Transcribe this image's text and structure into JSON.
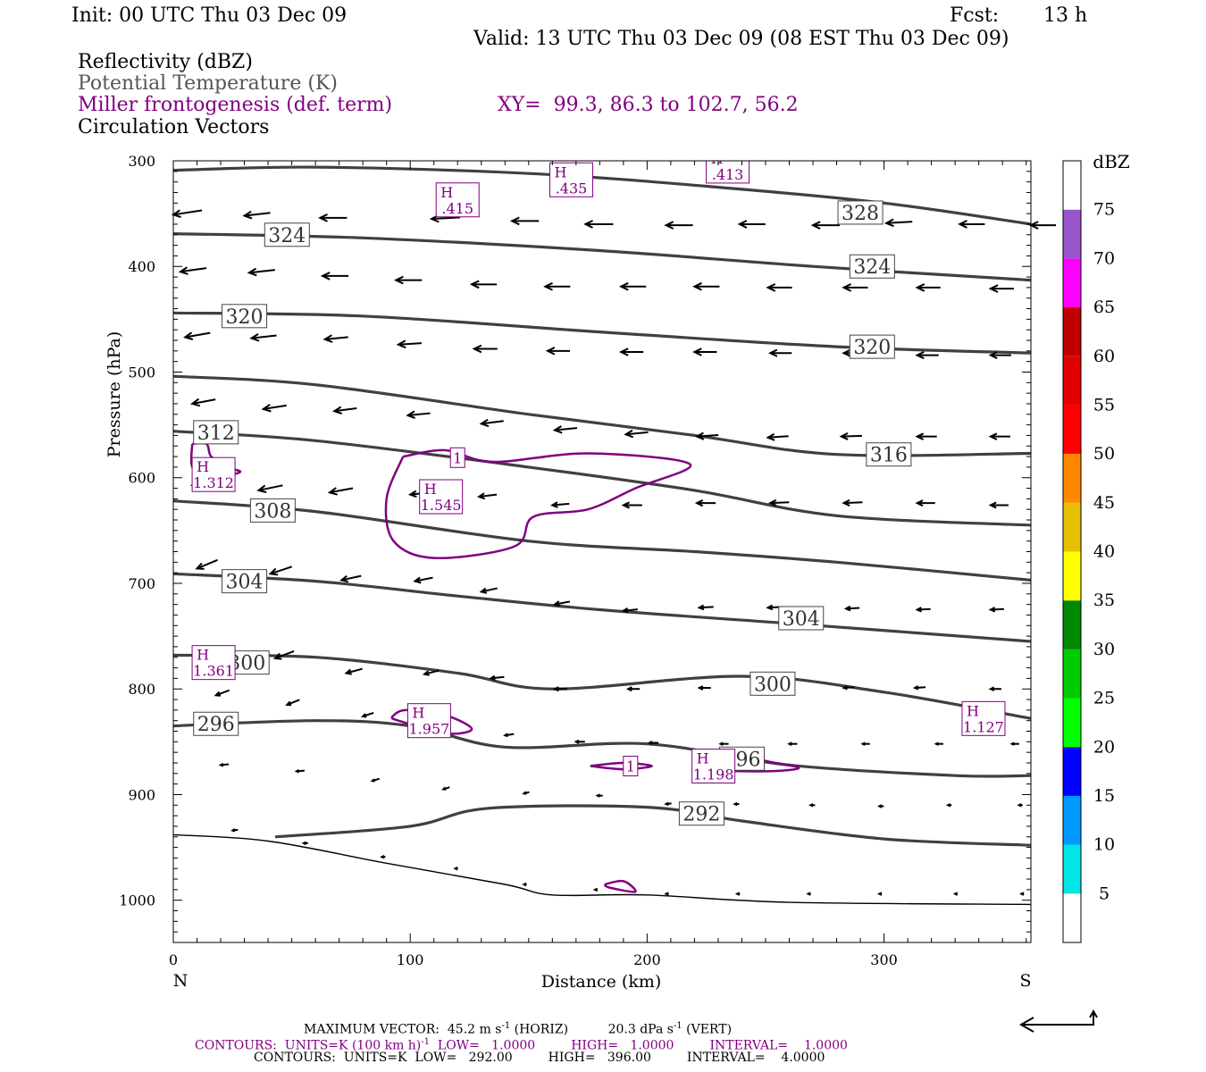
{
  "header": {
    "init": "Init: 00 UTC Thu 03 Dec 09",
    "fcst_label": "Fcst:",
    "fcst_value": "13 h",
    "valid": "Valid: 13 UTC Thu 03 Dec 09 (08 EST Thu 03 Dec 09)",
    "fields": [
      "Reflectivity (dBZ)",
      "Potential Temperature (K)",
      "Miller frontogenesis (def. term)",
      "Circulation Vectors"
    ],
    "xy": "XY=  99.3, 86.3 to 102.7, 56.2"
  },
  "colors": {
    "theta": "#404040",
    "frontogenesis": "#800080",
    "vectors": "#000000"
  },
  "chart_data": {
    "type": "cross-section",
    "xlabel": "Distance (km)",
    "ylabel": "Pressure (hPa)",
    "xlim": [
      0,
      362
    ],
    "ylim": [
      1040,
      300
    ],
    "x_ticks": [
      0,
      100,
      200,
      300
    ],
    "y_ticks": [
      300,
      400,
      500,
      600,
      700,
      800,
      900,
      1000
    ],
    "endpoint_left": "N",
    "endpoint_right": "S",
    "colorbar": {
      "unit": "dBZ",
      "labels": [
        "5",
        "10",
        "15",
        "20",
        "25",
        "30",
        "35",
        "40",
        "45",
        "50",
        "55",
        "60",
        "65",
        "70",
        "75"
      ],
      "colors": [
        "#ffffff",
        "#00e5e5",
        "#0099ff",
        "#0000ff",
        "#00ff00",
        "#00cc00",
        "#008800",
        "#ffff00",
        "#e5c000",
        "#ff8800",
        "#ff0000",
        "#e00000",
        "#c00000",
        "#ff00ff",
        "#9955cc",
        "#ffffff"
      ]
    },
    "theta_contours": [
      {
        "level": 328,
        "points": [
          [
            0,
            309
          ],
          [
            60,
            306
          ],
          [
            150,
            312
          ],
          [
            230,
            325
          ],
          [
            300,
            340
          ],
          [
            362,
            360
          ]
        ]
      },
      {
        "level": 324,
        "points": [
          [
            0,
            369
          ],
          [
            80,
            373
          ],
          [
            180,
            385
          ],
          [
            270,
            400
          ],
          [
            362,
            413
          ]
        ]
      },
      {
        "level": 320,
        "points": [
          [
            0,
            444
          ],
          [
            80,
            447
          ],
          [
            180,
            462
          ],
          [
            280,
            476
          ],
          [
            362,
            482
          ]
        ]
      },
      {
        "level": 316,
        "points": [
          [
            0,
            504
          ],
          [
            60,
            512
          ],
          [
            150,
            540
          ],
          [
            220,
            560
          ],
          [
            280,
            578
          ],
          [
            362,
            577
          ]
        ]
      },
      {
        "level": 312,
        "points": [
          [
            0,
            556
          ],
          [
            60,
            565
          ],
          [
            150,
            590
          ],
          [
            220,
            612
          ],
          [
            280,
            636
          ],
          [
            362,
            645
          ]
        ]
      },
      {
        "level": 308,
        "points": [
          [
            0,
            622
          ],
          [
            60,
            632
          ],
          [
            150,
            660
          ],
          [
            220,
            670
          ],
          [
            280,
            680
          ],
          [
            362,
            697
          ]
        ]
      },
      {
        "level": 304,
        "points": [
          [
            0,
            691
          ],
          [
            60,
            698
          ],
          [
            120,
            712
          ],
          [
            180,
            725
          ],
          [
            260,
            738
          ],
          [
            362,
            755
          ]
        ]
      },
      {
        "level": 300,
        "points": [
          [
            0,
            768
          ],
          [
            60,
            770
          ],
          [
            120,
            785
          ],
          [
            160,
            800
          ],
          [
            240,
            788
          ],
          [
            300,
            803
          ],
          [
            362,
            828
          ]
        ]
      },
      {
        "level": 296,
        "points": [
          [
            0,
            835
          ],
          [
            60,
            830
          ],
          [
            100,
            835
          ],
          [
            140,
            855
          ],
          [
            200,
            852
          ],
          [
            260,
            872
          ],
          [
            330,
            882
          ],
          [
            362,
            882
          ]
        ]
      },
      {
        "level": 292,
        "points": [
          [
            43,
            940
          ],
          [
            100,
            930
          ],
          [
            133,
            913
          ],
          [
            200,
            912
          ],
          [
            240,
            925
          ],
          [
            300,
            942
          ],
          [
            362,
            948
          ]
        ]
      }
    ],
    "theta_labels": [
      {
        "text": "328",
        "x": 290,
        "p": 349
      },
      {
        "text": "324",
        "x": 48,
        "p": 370
      },
      {
        "text": "324",
        "x": 295,
        "p": 400
      },
      {
        "text": "320",
        "x": 30,
        "p": 447
      },
      {
        "text": "320",
        "x": 295,
        "p": 476
      },
      {
        "text": "316",
        "x": 302,
        "p": 578
      },
      {
        "text": "312",
        "x": 18,
        "p": 557
      },
      {
        "text": "308",
        "x": 42,
        "p": 631
      },
      {
        "text": "304",
        "x": 30,
        "p": 698
      },
      {
        "text": "304",
        "x": 265,
        "p": 733
      },
      {
        "text": "300",
        "x": 31,
        "p": 775
      },
      {
        "text": "300",
        "x": 253,
        "p": 795
      },
      {
        "text": "296",
        "x": 18,
        "p": 833
      },
      {
        "text": "296",
        "x": 240,
        "p": 866
      },
      {
        "text": "292",
        "x": 223,
        "p": 918
      }
    ],
    "frontogenesis_contours": [
      {
        "level": 1,
        "points": [
          [
            97,
            580
          ],
          [
            115,
            574
          ],
          [
            135,
            585
          ],
          [
            175,
            577
          ],
          [
            218,
            587
          ],
          [
            195,
            610
          ],
          [
            175,
            630
          ],
          [
            152,
            637
          ],
          [
            144,
            665
          ],
          [
            110,
            676
          ],
          [
            93,
            660
          ],
          [
            90,
            620
          ],
          [
            97,
            580
          ]
        ]
      },
      {
        "level": 1,
        "points": [
          [
            8,
            568
          ],
          [
            14,
            568
          ],
          [
            16,
            580
          ],
          [
            23,
            590
          ],
          [
            28,
            595
          ],
          [
            14,
            600
          ],
          [
            8,
            590
          ],
          [
            8,
            568
          ]
        ]
      },
      {
        "level": 1,
        "points": [
          [
            92,
            827
          ],
          [
            98,
            820
          ],
          [
            115,
            825
          ],
          [
            126,
            838
          ],
          [
            115,
            842
          ],
          [
            95,
            830
          ],
          [
            92,
            827
          ]
        ]
      },
      {
        "level": 1,
        "points": [
          [
            176,
            873
          ],
          [
            190,
            870
          ],
          [
            202,
            873
          ],
          [
            190,
            876
          ],
          [
            176,
            873
          ]
        ]
      },
      {
        "level": 1,
        "points": [
          [
            220,
            868
          ],
          [
            240,
            865
          ],
          [
            254,
            870
          ],
          [
            264,
            875
          ],
          [
            250,
            878
          ],
          [
            225,
            876
          ],
          [
            220,
            868
          ]
        ]
      },
      {
        "level": 1,
        "points": [
          [
            182,
            985
          ],
          [
            190,
            982
          ],
          [
            195,
            992
          ],
          [
            184,
            988
          ],
          [
            182,
            985
          ]
        ]
      }
    ],
    "frontogenesis_labels": [
      {
        "text": "1",
        "x": 120,
        "p": 581
      },
      {
        "text": "1",
        "x": 193,
        "p": 873
      }
    ],
    "highs": [
      {
        "value": ".415",
        "x": 120,
        "p": 337
      },
      {
        "value": ".435",
        "x": 168,
        "p": 318
      },
      {
        "value": ".413",
        "x": 234,
        "p": 305
      },
      {
        "value": "1.312",
        "x": 17,
        "p": 597
      },
      {
        "value": "1.545",
        "x": 113,
        "p": 618
      },
      {
        "value": "1.361",
        "x": 17,
        "p": 775
      },
      {
        "value": "1.957",
        "x": 108,
        "p": 830
      },
      {
        "value": "1.198",
        "x": 228,
        "p": 873
      },
      {
        "value": "1.127",
        "x": 342,
        "p": 828
      }
    ],
    "vectors": [
      [
        0,
        351,
        32,
        -6
      ],
      [
        30,
        352,
        29,
        -4
      ],
      [
        62,
        354,
        30,
        0
      ],
      [
        109,
        355,
        32,
        -2
      ],
      [
        143,
        357,
        30,
        0
      ],
      [
        174,
        360,
        31,
        0
      ],
      [
        208,
        361,
        30,
        0
      ],
      [
        239,
        360,
        29,
        0
      ],
      [
        270,
        361,
        30,
        0
      ],
      [
        301,
        359,
        29,
        -2
      ],
      [
        332,
        360,
        28,
        0
      ],
      [
        362,
        361,
        28,
        0
      ],
      [
        3,
        405,
        29,
        -5
      ],
      [
        32,
        406,
        29,
        -4
      ],
      [
        63,
        409,
        29,
        0
      ],
      [
        94,
        413,
        29,
        0
      ],
      [
        126,
        417,
        28,
        0
      ],
      [
        157,
        419,
        28,
        0
      ],
      [
        189,
        419,
        28,
        0
      ],
      [
        220,
        419,
        28,
        0
      ],
      [
        251,
        420,
        27,
        0
      ],
      [
        283,
        420,
        27,
        0
      ],
      [
        314,
        420,
        26,
        0
      ],
      [
        345,
        421,
        26,
        0
      ],
      [
        5,
        467,
        28,
        -6
      ],
      [
        33,
        468,
        28,
        -4
      ],
      [
        64,
        469,
        26,
        -3
      ],
      [
        95,
        474,
        26,
        -2
      ],
      [
        127,
        478,
        26,
        0
      ],
      [
        158,
        480,
        25,
        0
      ],
      [
        189,
        481,
        25,
        0
      ],
      [
        220,
        481,
        25,
        0
      ],
      [
        252,
        482,
        24,
        0
      ],
      [
        283,
        482,
        24,
        0
      ],
      [
        314,
        484,
        24,
        0
      ],
      [
        345,
        484,
        23,
        0
      ],
      [
        8,
        530,
        26,
        -6
      ],
      [
        38,
        535,
        26,
        -5
      ],
      [
        68,
        537,
        25,
        -4
      ],
      [
        99,
        541,
        25,
        -3
      ],
      [
        130,
        549,
        25,
        -4
      ],
      [
        161,
        555,
        25,
        -3
      ],
      [
        191,
        559,
        25,
        -3
      ],
      [
        221,
        561,
        24,
        -2
      ],
      [
        251,
        562,
        23,
        -2
      ],
      [
        282,
        561,
        23,
        -1
      ],
      [
        314,
        561,
        22,
        0
      ],
      [
        345,
        561,
        22,
        0
      ],
      [
        8,
        607,
        25,
        -13
      ],
      [
        36,
        612,
        27,
        -7
      ],
      [
        66,
        614,
        26,
        -6
      ],
      [
        100,
        616,
        22,
        -3
      ],
      [
        129,
        618,
        20,
        -3
      ],
      [
        160,
        626,
        19,
        -2
      ],
      [
        190,
        626,
        21,
        0
      ],
      [
        221,
        624,
        21,
        0
      ],
      [
        252,
        624,
        21,
        -1
      ],
      [
        283,
        624,
        21,
        -1
      ],
      [
        314,
        624,
        20,
        0
      ],
      [
        345,
        626,
        20,
        0
      ],
      [
        10,
        686,
        23,
        -12
      ],
      [
        41,
        691,
        24,
        -10
      ],
      [
        71,
        697,
        22,
        -6
      ],
      [
        102,
        698,
        20,
        -5
      ],
      [
        130,
        708,
        18,
        -5
      ],
      [
        161,
        720,
        17,
        -4
      ],
      [
        190,
        726,
        16,
        -2
      ],
      [
        222,
        723,
        16,
        -1
      ],
      [
        251,
        723,
        16,
        -1
      ],
      [
        284,
        724,
        15,
        -1
      ],
      [
        314,
        725,
        15,
        -1
      ],
      [
        345,
        725,
        15,
        -1
      ],
      [
        13,
        768,
        20,
        -8
      ],
      [
        43,
        771,
        21,
        -10
      ],
      [
        73,
        785,
        18,
        -6
      ],
      [
        106,
        786,
        16,
        -5
      ],
      [
        134,
        790,
        15,
        -2
      ],
      [
        161,
        800,
        14,
        0
      ],
      [
        192,
        800,
        13,
        0
      ],
      [
        222,
        799,
        13,
        0
      ],
      [
        252,
        799,
        13,
        -1
      ],
      [
        283,
        799,
        12,
        -1
      ],
      [
        313,
        799,
        12,
        -1
      ],
      [
        345,
        800,
        12,
        0
      ],
      [
        18,
        806,
        15,
        -7
      ],
      [
        48,
        815,
        14,
        -7
      ],
      [
        80,
        826,
        12,
        -5
      ],
      [
        107,
        830,
        10,
        -4
      ],
      [
        140,
        844,
        10,
        -2
      ],
      [
        170,
        850,
        10,
        0
      ],
      [
        201,
        851,
        10,
        0
      ],
      [
        231,
        852,
        9,
        0
      ],
      [
        260,
        852,
        9,
        0
      ],
      [
        291,
        852,
        8,
        0
      ],
      [
        322,
        852,
        8,
        0
      ],
      [
        354,
        852,
        8,
        0
      ],
      [
        20,
        872,
        9,
        -1
      ],
      [
        52,
        878,
        9,
        -1
      ],
      [
        84,
        887,
        8,
        -3
      ],
      [
        114,
        895,
        7,
        -3
      ],
      [
        148,
        899,
        6,
        -2
      ],
      [
        179,
        901,
        6,
        0
      ],
      [
        208,
        909,
        6,
        -1
      ],
      [
        237,
        909,
        5,
        0
      ],
      [
        269,
        910,
        5,
        0
      ],
      [
        298,
        911,
        5,
        0
      ],
      [
        327,
        910,
        4,
        0
      ],
      [
        357,
        910,
        4,
        0
      ],
      [
        25,
        934,
        6,
        -1
      ],
      [
        55,
        946,
        5,
        0
      ],
      [
        88,
        959,
        4,
        0
      ],
      [
        119,
        970,
        3,
        0
      ],
      [
        148,
        985,
        3,
        0
      ],
      [
        178,
        990,
        3,
        0
      ],
      [
        208,
        994,
        3,
        0
      ],
      [
        238,
        994,
        3,
        0
      ],
      [
        268,
        994,
        2,
        0
      ],
      [
        298,
        994,
        2,
        0
      ],
      [
        330,
        994,
        2,
        0
      ],
      [
        358,
        994,
        2,
        0
      ]
    ],
    "terrain": [
      [
        0,
        938
      ],
      [
        40,
        944
      ],
      [
        90,
        965
      ],
      [
        140,
        985
      ],
      [
        160,
        995
      ],
      [
        200,
        995
      ],
      [
        260,
        1002
      ],
      [
        362,
        1004
      ]
    ]
  },
  "footer": {
    "max_vector_label": "MAXIMUM VECTOR:",
    "max_vector_horiz": "45.2 m s",
    "max_vector_horiz_exp": "-1",
    "max_vector_horiz_tag": "(HORIZ)",
    "max_vector_vert": "20.3 dPa s",
    "max_vector_vert_exp": "-1",
    "max_vector_vert_tag": "(VERT)",
    "contours1_pre": "CONTOURS:  UNITS=K (100 km h)",
    "contours1_exp": "-1",
    "contours1_post": "  LOW=   1.0000         HIGH=   1.0000         INTERVAL=    1.0000",
    "contours2": "CONTOURS:  UNITS=K  LOW=   292.00         HIGH=   396.00         INTERVAL=    4.0000"
  }
}
